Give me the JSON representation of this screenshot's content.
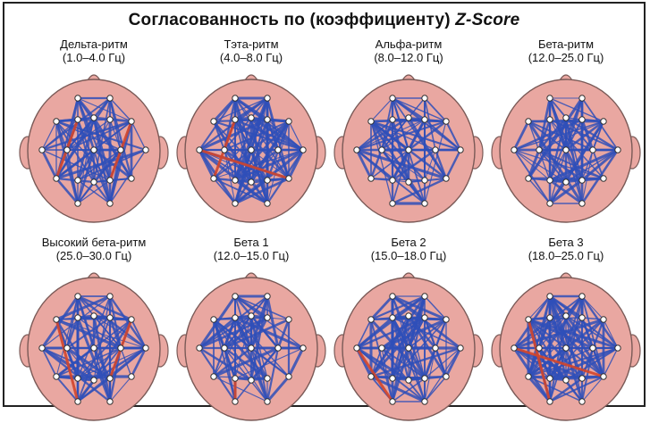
{
  "title": "Согласованность по (коэффициенту)",
  "title_em": "Z-Score",
  "colors": {
    "head_fill": "#e9a7a1",
    "head_stroke": "#7a5a57",
    "blue_link": "#2f4fb8",
    "red_link": "#d2452b",
    "electrode": "#ffffff"
  },
  "panels": [
    {
      "name": "Дельта-ритм",
      "range": "(1.0–4.0 Гц)",
      "red": [
        [
          3,
          12
        ],
        [
          6,
          15
        ]
      ],
      "density": 0.55,
      "seed": 3
    },
    {
      "name": "Тэта-ритм",
      "range": "(4.0–8.0 Гц)",
      "red": [
        [
          3,
          12
        ],
        [
          7,
          16
        ]
      ],
      "density": 0.62,
      "seed": 7
    },
    {
      "name": "Альфа-ритм",
      "range": "(8.0–12.0 Гц)",
      "red": [],
      "density": 0.45,
      "seed": 11
    },
    {
      "name": "Бета-ритм",
      "range": "(12.0–25.0 Гц)",
      "red": [],
      "density": 0.48,
      "seed": 19
    },
    {
      "name": "Высокий бета-ритм",
      "range": "(25.0–30.0 Гц)",
      "red": [
        [
          2,
          17
        ],
        [
          6,
          15
        ]
      ],
      "density": 0.5,
      "seed": 23
    },
    {
      "name": "Бета 1",
      "range": "(12.0–15.0 Гц)",
      "red": [
        [
          13,
          17
        ]
      ],
      "density": 0.55,
      "seed": 29
    },
    {
      "name": "Бета 2",
      "range": "(15.0–18.0 Гц)",
      "red": [
        [
          7,
          17
        ]
      ],
      "density": 0.52,
      "seed": 31
    },
    {
      "name": "Бета 3",
      "range": "(18.0–25.0 Гц)",
      "red": [
        [
          2,
          17
        ],
        [
          7,
          16
        ]
      ],
      "density": 0.5,
      "seed": 37
    }
  ]
}
